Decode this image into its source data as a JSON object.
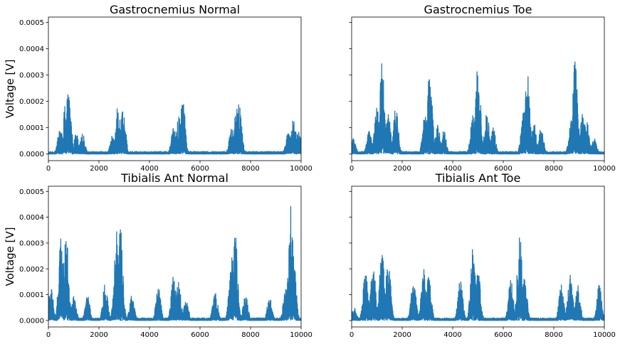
{
  "colors": {
    "line": "#1f77b4",
    "axes": "#000000",
    "background": "#ffffff"
  },
  "chart_data": [
    {
      "type": "line",
      "title": "Gastrocnemius Normal",
      "ylabel": "Voltage [V]",
      "xlabel": "",
      "xlim": [
        0,
        10000
      ],
      "ylim": [
        -2.5e-05,
        0.00052
      ],
      "xticks": [
        0,
        2000,
        4000,
        6000,
        8000,
        10000
      ],
      "yticks": [
        0.0,
        0.0001,
        0.0002,
        0.0003,
        0.0004,
        0.0005
      ],
      "xtick_labels": [
        "0",
        "2000",
        "4000",
        "6000",
        "8000",
        "10000"
      ],
      "ytick_labels": [
        "0.0000",
        "0.0001",
        "0.0002",
        "0.0003",
        "0.0004",
        "0.0005"
      ],
      "bursts": [
        {
          "x": 450,
          "peak": 9e-05
        },
        {
          "x": 650,
          "peak": 0.00018
        },
        {
          "x": 800,
          "peak": 0.000255
        },
        {
          "x": 1100,
          "peak": 8e-05
        },
        {
          "x": 1350,
          "peak": 8e-05
        },
        {
          "x": 2550,
          "peak": 8e-05
        },
        {
          "x": 2750,
          "peak": 0.0002
        },
        {
          "x": 2950,
          "peak": 0.00019
        },
        {
          "x": 4950,
          "peak": 0.0001
        },
        {
          "x": 5150,
          "peak": 0.00015
        },
        {
          "x": 5300,
          "peak": 0.00025
        },
        {
          "x": 7250,
          "peak": 0.0001
        },
        {
          "x": 7450,
          "peak": 0.00018
        },
        {
          "x": 7550,
          "peak": 0.000205
        },
        {
          "x": 9500,
          "peak": 0.0001
        },
        {
          "x": 9700,
          "peak": 0.00014
        },
        {
          "x": 9900,
          "peak": 9e-05
        }
      ]
    },
    {
      "type": "line",
      "title": "Gastrocnemius Toe",
      "ylabel": "",
      "xlabel": "",
      "xlim": [
        0,
        10000
      ],
      "ylim": [
        -2.5e-05,
        0.00052
      ],
      "xticks": [
        0,
        2000,
        4000,
        6000,
        8000,
        10000
      ],
      "yticks": [
        0.0,
        0.0001,
        0.0002,
        0.0003,
        0.0004,
        0.0005
      ],
      "xtick_labels": [
        "0",
        "2000",
        "4000",
        "6000",
        "8000",
        "10000"
      ],
      "ytick_labels": [],
      "bursts": [
        {
          "x": 80,
          "peak": 6e-05
        },
        {
          "x": 700,
          "peak": 9e-05
        },
        {
          "x": 1000,
          "peak": 0.00018
        },
        {
          "x": 1200,
          "peak": 0.00035
        },
        {
          "x": 1450,
          "peak": 0.00015
        },
        {
          "x": 1750,
          "peak": 0.00018
        },
        {
          "x": 2900,
          "peak": 0.00015
        },
        {
          "x": 3100,
          "peak": 0.000345
        },
        {
          "x": 3400,
          "peak": 0.00012
        },
        {
          "x": 3650,
          "peak": 9e-05
        },
        {
          "x": 4800,
          "peak": 0.00015
        },
        {
          "x": 5000,
          "peak": 0.000365
        },
        {
          "x": 5350,
          "peak": 0.00016
        },
        {
          "x": 5600,
          "peak": 0.0001
        },
        {
          "x": 6800,
          "peak": 0.00016
        },
        {
          "x": 6950,
          "peak": 0.00031
        },
        {
          "x": 7200,
          "peak": 0.00013
        },
        {
          "x": 7500,
          "peak": 0.0001
        },
        {
          "x": 8700,
          "peak": 0.00015
        },
        {
          "x": 8850,
          "peak": 0.000375
        },
        {
          "x": 9150,
          "peak": 0.00016
        },
        {
          "x": 9300,
          "peak": 0.00013
        },
        {
          "x": 9600,
          "peak": 6e-05
        }
      ]
    },
    {
      "type": "line",
      "title": "Tibialis Ant Normal",
      "ylabel": "Voltage [V]",
      "xlabel": "",
      "xlim": [
        0,
        10000
      ],
      "ylim": [
        -2.5e-05,
        0.00052
      ],
      "xticks": [
        0,
        2000,
        4000,
        6000,
        8000,
        10000
      ],
      "yticks": [
        0.0,
        0.0001,
        0.0002,
        0.0003,
        0.0004,
        0.0005
      ],
      "xtick_labels": [
        "0",
        "2000",
        "4000",
        "6000",
        "8000",
        "10000"
      ],
      "ytick_labels": [
        "0.0000",
        "0.0001",
        "0.0002",
        "0.0003",
        "0.0004",
        "0.0005"
      ],
      "bursts": [
        {
          "x": 100,
          "peak": 0.000125
        },
        {
          "x": 500,
          "peak": 0.00032
        },
        {
          "x": 700,
          "peak": 0.00035
        },
        {
          "x": 1000,
          "peak": 0.0001
        },
        {
          "x": 1550,
          "peak": 0.0001
        },
        {
          "x": 2250,
          "peak": 0.00015
        },
        {
          "x": 2700,
          "peak": 0.00035
        },
        {
          "x": 2850,
          "peak": 0.000365
        },
        {
          "x": 3300,
          "peak": 0.0001
        },
        {
          "x": 4350,
          "peak": 0.00013
        },
        {
          "x": 4950,
          "peak": 0.000175
        },
        {
          "x": 5150,
          "peak": 0.00015
        },
        {
          "x": 5450,
          "peak": 8e-05
        },
        {
          "x": 6600,
          "peak": 0.00012
        },
        {
          "x": 7250,
          "peak": 0.00029
        },
        {
          "x": 7400,
          "peak": 0.00034
        },
        {
          "x": 7800,
          "peak": 0.0001
        },
        {
          "x": 8750,
          "peak": 9e-05
        },
        {
          "x": 9400,
          "peak": 0.00015
        },
        {
          "x": 9600,
          "peak": 0.000445
        },
        {
          "x": 9700,
          "peak": 0.00025
        }
      ]
    },
    {
      "type": "line",
      "title": "Tibialis Ant Toe",
      "ylabel": "",
      "xlabel": "",
      "xlim": [
        0,
        10000
      ],
      "ylim": [
        -2.5e-05,
        0.00052
      ],
      "xticks": [
        0,
        2000,
        4000,
        6000,
        8000,
        10000
      ],
      "yticks": [
        0.0,
        0.0001,
        0.0002,
        0.0003,
        0.0004,
        0.0005
      ],
      "xtick_labels": [
        "0",
        "2000",
        "4000",
        "6000",
        "8000",
        "10000"
      ],
      "ytick_labels": [],
      "bursts": [
        {
          "x": 100,
          "peak": 5e-05
        },
        {
          "x": 550,
          "peak": 0.0002
        },
        {
          "x": 850,
          "peak": 0.00024
        },
        {
          "x": 1200,
          "peak": 0.00028
        },
        {
          "x": 1450,
          "peak": 0.00025
        },
        {
          "x": 2450,
          "peak": 0.00017
        },
        {
          "x": 2850,
          "peak": 0.0002
        },
        {
          "x": 3050,
          "peak": 0.00018
        },
        {
          "x": 4300,
          "peak": 0.00016
        },
        {
          "x": 4800,
          "peak": 0.00029
        },
        {
          "x": 5000,
          "peak": 0.0002
        },
        {
          "x": 6300,
          "peak": 0.00016
        },
        {
          "x": 6650,
          "peak": 0.000345
        },
        {
          "x": 6850,
          "peak": 0.00017
        },
        {
          "x": 8300,
          "peak": 0.00014
        },
        {
          "x": 8650,
          "peak": 0.00018
        },
        {
          "x": 8950,
          "peak": 0.00014
        },
        {
          "x": 9800,
          "peak": 0.00014
        }
      ]
    }
  ]
}
